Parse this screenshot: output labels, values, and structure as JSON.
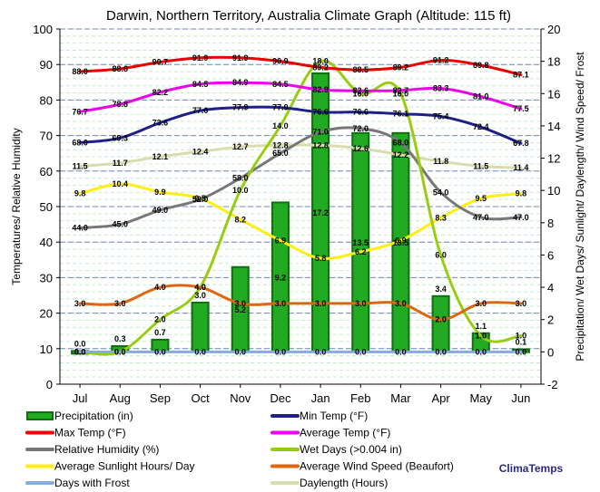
{
  "chart_data": {
    "type": "bar+line",
    "title": "Darwin, Northern Territory, Australia Climate Graph (Altitude: 115 ft)",
    "ylabel_left": "Temperatures/ Relative Humidity",
    "ylabel_right": "Precipitation/ Wet Days/ Sunlight/ Daylength/ Wind Speed/ Frost",
    "brand": "ClimaTemps",
    "categories": [
      "Jul",
      "Aug",
      "Sep",
      "Oct",
      "Nov",
      "Dec",
      "Jan",
      "Feb",
      "Mar",
      "Apr",
      "May",
      "Jun"
    ],
    "ylim_left": [
      0,
      100
    ],
    "yticks_left": [
      "0",
      "10",
      "20",
      "30",
      "40",
      "50",
      "60",
      "70",
      "80",
      "90",
      "100"
    ],
    "ylim_right": [
      -2,
      20
    ],
    "yticks_right": [
      "-2",
      "0",
      "2",
      "4",
      "6",
      "8",
      "10",
      "12",
      "14",
      "16",
      "18",
      "20"
    ],
    "series": [
      {
        "name": "Precipitation (in)",
        "kind": "bar",
        "axis": "right",
        "color": "#22aa22",
        "values": [
          0.0,
          0.3,
          0.7,
          3.0,
          5.2,
          9.2,
          17.2,
          13.5,
          13.5,
          3.4,
          1.1,
          0.1
        ],
        "labels": [
          "0.0",
          "0.3",
          "0.7",
          "3.0",
          "5.2",
          "9.2",
          "17.2",
          "13.5",
          "13.5",
          "3.4",
          "1.1",
          "0.1"
        ]
      },
      {
        "name": "Min Temp (°F)",
        "kind": "line",
        "axis": "left",
        "color": "#1f1f8a",
        "values": [
          68.0,
          69.3,
          73.6,
          77.0,
          77.9,
          77.9,
          76.6,
          76.6,
          76.1,
          75.4,
          72.4,
          67.8
        ],
        "labels": [
          "68.0",
          "69.3",
          "73.6",
          "77.0",
          "77.9",
          "77.9",
          "76.6",
          "76.6",
          "76.1",
          "75.4",
          "72.4",
          "67.8"
        ]
      },
      {
        "name": "Max Temp (°F)",
        "kind": "line",
        "axis": "left",
        "color": "#ee0000",
        "values": [
          88.0,
          88.8,
          90.7,
          91.9,
          91.9,
          90.9,
          89.2,
          88.5,
          89.2,
          91.2,
          89.8,
          87.1
        ],
        "labels": [
          "88.0",
          "88.8",
          "90.7",
          "91.9",
          "91.9",
          "90.9",
          "89.2",
          "88.5",
          "89.2",
          "91.2",
          "89.8",
          "87.1"
        ]
      },
      {
        "name": "Average Temp (°F)",
        "kind": "line",
        "axis": "left",
        "color": "#ee00ee",
        "values": [
          76.7,
          78.8,
          82.2,
          84.5,
          84.9,
          84.5,
          82.9,
          82.6,
          82.7,
          83.3,
          81.0,
          77.5
        ],
        "labels": [
          "76.7",
          "78.8",
          "82.2",
          "84.5",
          "84.9",
          "84.5",
          "82.9",
          "82.6",
          "82.7",
          "83.3",
          "81.0",
          "77.5"
        ]
      },
      {
        "name": "Relative Humidity (%)",
        "kind": "line",
        "axis": "left",
        "color": "#777777",
        "values": [
          44.0,
          45.0,
          49.0,
          52.0,
          58.0,
          65.0,
          71.0,
          72.0,
          68.0,
          54.0,
          47.0,
          47.0
        ],
        "labels": [
          "44.0",
          "45.0",
          "49.0",
          "52.0",
          "58.0",
          "65.0",
          "71.0",
          "72.0",
          "68.0",
          "54.0",
          "47.0",
          "47.0"
        ]
      },
      {
        "name": "Wet Days (>0.004 in)",
        "kind": "line",
        "axis": "right",
        "color": "#99cc11",
        "values": [
          0.0,
          0.0,
          2.0,
          4.0,
          10.0,
          14.0,
          18.0,
          16.0,
          16.0,
          6.0,
          1.0,
          1.0
        ],
        "labels": [
          "0.0",
          "0.0",
          "2.0",
          "4.0",
          "10.0",
          "14.0",
          "18.0",
          "16.0",
          "16.0",
          "6.0",
          "1.0",
          "1.0"
        ]
      },
      {
        "name": "Average Sunlight Hours/ Day",
        "kind": "line",
        "axis": "right",
        "color": "#ffee11",
        "values": [
          9.8,
          10.4,
          9.9,
          9.5,
          8.2,
          6.9,
          5.8,
          6.2,
          6.9,
          8.3,
          9.5,
          9.8
        ],
        "labels": [
          "9.8",
          "10.4",
          "9.9",
          "9.5",
          "8.2",
          "6.9",
          "5.8",
          "6.2",
          "6.9",
          "8.3",
          "9.5",
          "9.8"
        ]
      },
      {
        "name": "Average Wind Speed (Beaufort)",
        "kind": "line",
        "axis": "right",
        "color": "#dd6611",
        "values": [
          3.0,
          3.0,
          4.0,
          4.0,
          3.0,
          3.0,
          3.0,
          3.0,
          3.0,
          2.0,
          3.0,
          3.0
        ],
        "labels": [
          "3.0",
          "3.0",
          "4.0",
          "4.0",
          "3.0",
          "3.0",
          "3.0",
          "3.0",
          "3.0",
          "2.0",
          "3.0",
          "3.0"
        ]
      },
      {
        "name": "Days with Frost",
        "kind": "line",
        "axis": "right",
        "color": "#88aadd",
        "values": [
          0.0,
          0.0,
          0.0,
          0.0,
          0.0,
          0.0,
          0.0,
          0.0,
          0.0,
          0.0,
          0.0,
          0.0
        ],
        "labels": [
          "0.0",
          "0.0",
          "0.0",
          "0.0",
          "0.0",
          "0.0",
          "0.0",
          "0.0",
          "0.0",
          "0.0",
          "0.0",
          "0.0"
        ]
      },
      {
        "name": "Daylength (Hours)",
        "kind": "line",
        "axis": "right",
        "color": "#d8ddb0",
        "values": [
          11.5,
          11.7,
          12.1,
          12.4,
          12.7,
          12.8,
          12.8,
          12.6,
          12.2,
          11.8,
          11.5,
          11.4
        ],
        "labels": [
          "11.5",
          "11.7",
          "12.1",
          "12.4",
          "12.7",
          "12.8",
          "12.8",
          "12.6",
          "12.2",
          "11.8",
          "11.5",
          "11.4"
        ]
      }
    ],
    "legend": [
      [
        "Precipitation (in)",
        "Min Temp (°F)"
      ],
      [
        "Max Temp (°F)",
        "Average Temp (°F)"
      ],
      [
        "Relative Humidity (%)",
        "Wet Days (>0.004 in)"
      ],
      [
        "Average Sunlight Hours/ Day",
        "Average Wind Speed (Beaufort)"
      ],
      [
        "Days with Frost",
        "Daylength (Hours)"
      ]
    ]
  }
}
